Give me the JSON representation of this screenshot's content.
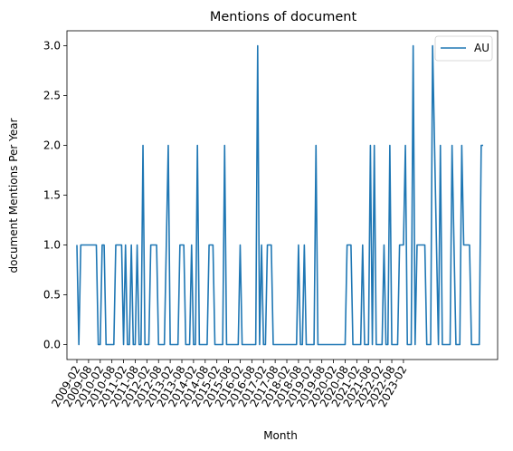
{
  "chart_data": {
    "type": "line",
    "title": "Mentions of document",
    "xlabel": "Month",
    "ylabel": "document Mentions Per Year",
    "ylim": [
      -0.15,
      3.15
    ],
    "y_ticks": [
      "0.0",
      "0.5",
      "1.0",
      "1.5",
      "2.0",
      "2.5",
      "3.0"
    ],
    "x_tick_labels": [
      "2009-02",
      "2009-08",
      "2010-02",
      "2010-08",
      "2011-02",
      "2011-08",
      "2012-02",
      "2012-08",
      "2013-02",
      "2013-08",
      "2014-02",
      "2014-08",
      "2015-02",
      "2015-08",
      "2016-02",
      "2016-08",
      "2017-02",
      "2017-08",
      "2018-02",
      "2018-08",
      "2019-02",
      "2019-08",
      "2020-02",
      "2020-08",
      "2021-02",
      "2021-08",
      "2022-02",
      "2022-08",
      "2023-02"
    ],
    "legend_position": "upper right",
    "grid": false,
    "series": [
      {
        "name": "AU",
        "color": "#1f77b4",
        "values": [
          1,
          0,
          1,
          1,
          1,
          1,
          1,
          1,
          1,
          1,
          1,
          0,
          0,
          1,
          1,
          0,
          0,
          0,
          0,
          0,
          1,
          1,
          1,
          1,
          0,
          1,
          0,
          0,
          1,
          0,
          0,
          1,
          0,
          0,
          2,
          0,
          0,
          0,
          1,
          1,
          1,
          1,
          0,
          0,
          0,
          0,
          1,
          2,
          0,
          0,
          0,
          0,
          0,
          1,
          1,
          1,
          0,
          0,
          0,
          1,
          0,
          0,
          2,
          0,
          0,
          0,
          0,
          0,
          1,
          1,
          1,
          0,
          0,
          0,
          0,
          0,
          2,
          0,
          0,
          0,
          0,
          0,
          0,
          0,
          1,
          0,
          0,
          0,
          0,
          0,
          0,
          0,
          0,
          3,
          0,
          1,
          0,
          0,
          1,
          1,
          1,
          0,
          0,
          0,
          0,
          0,
          0,
          0,
          0,
          0,
          0,
          0,
          0,
          0,
          1,
          0,
          0,
          1,
          0,
          0,
          0,
          0,
          0,
          2,
          0,
          0,
          0,
          0,
          0,
          0,
          0,
          0,
          0,
          0,
          0,
          0,
          0,
          0,
          0,
          1,
          1,
          1,
          0,
          0,
          0,
          0,
          0,
          1,
          0,
          0,
          0,
          2,
          0,
          2,
          0,
          0,
          0,
          0,
          1,
          0,
          0,
          2,
          0,
          0,
          0,
          0,
          1,
          1,
          1,
          2,
          0,
          0,
          0,
          3,
          0,
          1,
          1,
          1,
          1,
          1,
          0,
          0,
          0,
          3,
          2,
          1,
          0,
          2,
          0,
          0,
          0,
          0,
          0,
          2,
          1,
          0,
          0,
          0,
          2,
          1,
          1,
          1,
          1,
          0,
          0,
          0,
          0,
          0,
          2,
          2
        ]
      }
    ]
  }
}
